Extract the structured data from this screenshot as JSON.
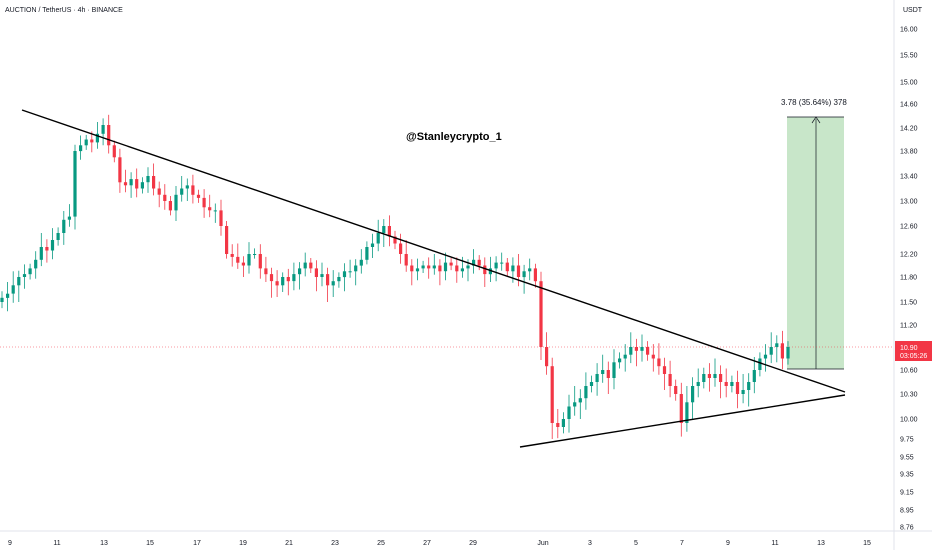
{
  "header": {
    "symbol": "AUCTION / TetherUS · 4h · BINANCE"
  },
  "watermark": {
    "text": "@Stanleycrypto_1"
  },
  "measure": {
    "label": "3.78 (35.64%) 378"
  },
  "price_tag": {
    "price": "10.90",
    "countdown": "03:05:26"
  },
  "chart_data": {
    "type": "candlestick",
    "currency": "USDT",
    "colors": {
      "up": "#089981",
      "down": "#f23645",
      "trendline": "#000000",
      "target_fill": "#c8e6c9",
      "price_line": "#f23645"
    },
    "y_ticks": [
      "16.00",
      "15.50",
      "15.00",
      "14.60",
      "14.20",
      "13.80",
      "13.40",
      "13.00",
      "12.60",
      "12.20",
      "11.80",
      "11.50",
      "11.20",
      "10.90",
      "10.60",
      "10.30",
      "10.00",
      "9.75",
      "9.55",
      "9.35",
      "9.15",
      "8.95",
      "8.76"
    ],
    "x_ticks": [
      "9",
      "11",
      "13",
      "15",
      "17",
      "19",
      "21",
      "23",
      "25",
      "27",
      "29",
      "Jun",
      "3",
      "5",
      "7",
      "9",
      "11",
      "13",
      "15"
    ],
    "ohlc_approx_close": [
      11.55,
      11.6,
      11.7,
      11.8,
      11.85,
      11.95,
      12.1,
      12.3,
      12.25,
      12.4,
      12.5,
      12.7,
      12.75,
      13.8,
      13.9,
      14.0,
      13.95,
      14.1,
      14.25,
      13.9,
      13.7,
      13.3,
      13.25,
      13.35,
      13.2,
      13.3,
      13.4,
      13.2,
      13.1,
      13.0,
      12.85,
      13.1,
      13.2,
      13.25,
      13.1,
      13.05,
      12.9,
      12.85,
      12.85,
      12.6,
      12.2,
      12.15,
      12.05,
      12.0,
      12.2,
      12.2,
      11.95,
      11.85,
      11.75,
      11.7,
      11.8,
      11.75,
      11.85,
      11.95,
      12.05,
      11.95,
      11.8,
      11.85,
      11.7,
      11.75,
      11.8,
      11.9,
      11.9,
      12.0,
      12.1,
      12.3,
      12.35,
      12.5,
      12.6,
      12.45,
      12.35,
      12.2,
      12.0,
      11.9,
      11.95,
      12.0,
      11.95,
      12.0,
      11.9,
      12.05,
      12.0,
      11.9,
      11.95,
      12.0,
      12.1,
      12.0,
      11.85,
      11.95,
      12.05,
      12.05,
      11.9,
      12.0,
      11.8,
      11.9,
      11.95,
      11.75,
      10.9,
      10.65,
      9.95,
      9.9,
      10.0,
      10.15,
      10.2,
      10.25,
      10.4,
      10.45,
      10.55,
      10.6,
      10.5,
      10.7,
      10.75,
      10.8,
      10.9,
      10.85,
      10.9,
      10.8,
      10.75,
      10.65,
      10.55,
      10.4,
      10.3,
      9.95,
      10.2,
      10.4,
      10.45,
      10.55,
      10.5,
      10.55,
      10.45,
      10.4,
      10.45,
      10.3,
      10.35,
      10.45,
      10.6,
      10.75,
      10.8,
      10.9,
      10.95,
      10.75,
      10.9
    ],
    "targets": {
      "entry": 10.6,
      "target": 14.38,
      "change": 3.78,
      "change_pct": 35.64,
      "ticks": 378
    },
    "last_price": 10.9
  }
}
